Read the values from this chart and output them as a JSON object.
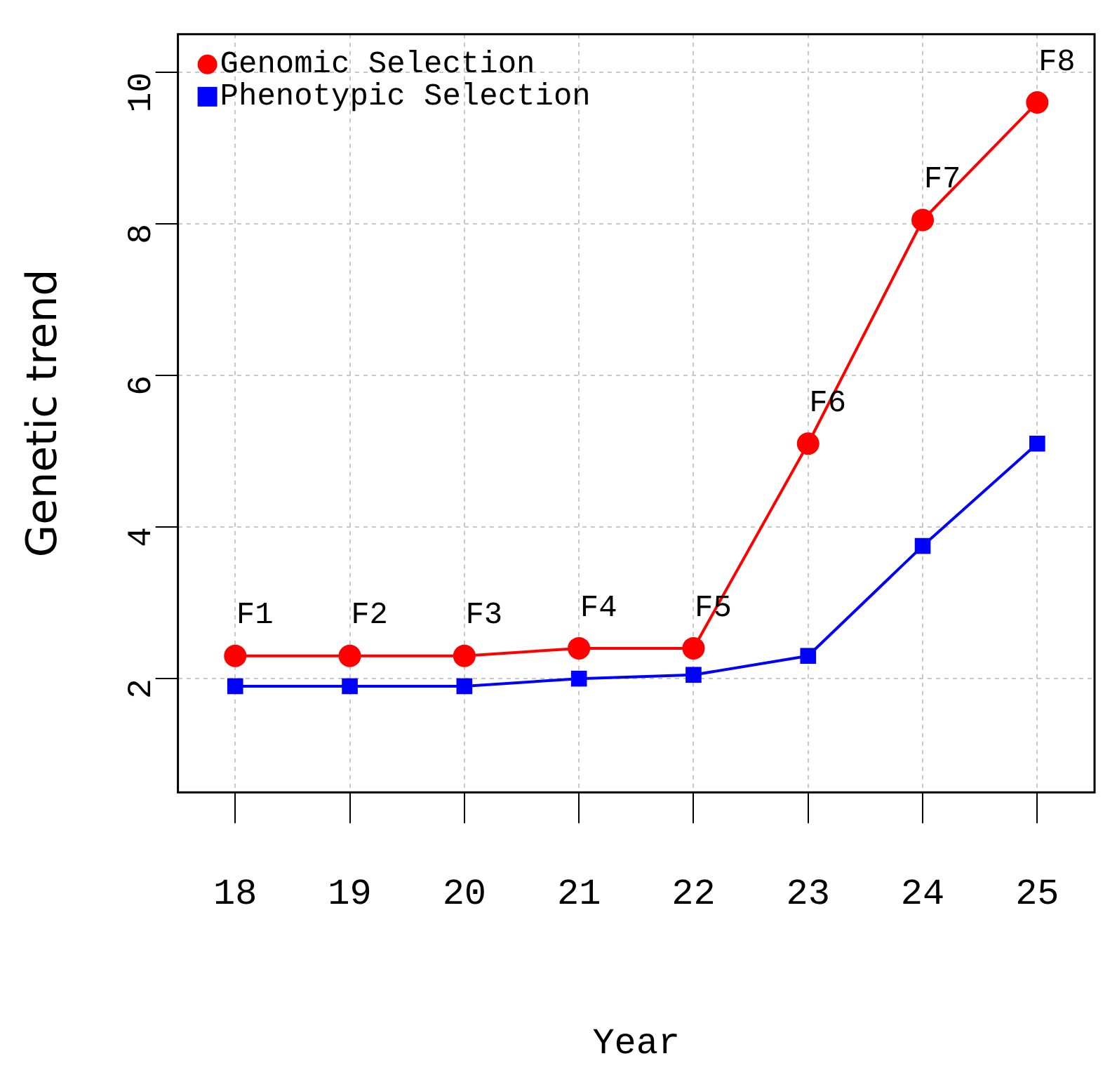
{
  "chart_data": {
    "type": "line",
    "xlabel": "Year",
    "ylabel": "Genetic trend",
    "categories": [
      "18",
      "19",
      "20",
      "21",
      "22",
      "23",
      "24",
      "25"
    ],
    "series": [
      {
        "name": "Genomic Selection",
        "color": "#ff0000",
        "marker": "circle",
        "values": [
          2.3,
          2.3,
          2.3,
          2.4,
          2.4,
          5.1,
          8.05,
          9.6
        ]
      },
      {
        "name": "Phenotypic Selection",
        "color": "#0000ff",
        "marker": "square",
        "values": [
          1.9,
          1.9,
          1.9,
          2.0,
          2.05,
          2.3,
          3.75,
          5.1
        ]
      }
    ],
    "ylim": [
      0.5,
      10.5
    ],
    "yticks": [
      2,
      4,
      6,
      8,
      10
    ],
    "grid": true,
    "legend": "top left",
    "line_style": "solid",
    "annotations": [
      {
        "text": "F1",
        "x": "18",
        "y": 2.3
      },
      {
        "text": "F2",
        "x": "19",
        "y": 2.3
      },
      {
        "text": "F3",
        "x": "20",
        "y": 2.3
      },
      {
        "text": "F4",
        "x": "21",
        "y": 2.4
      },
      {
        "text": "F5",
        "x": "22",
        "y": 2.4
      },
      {
        "text": "F6",
        "x": "23",
        "y": 5.1
      },
      {
        "text": "F7",
        "x": "24",
        "y": 8.05
      },
      {
        "text": "F8",
        "x": "25",
        "y": 9.6
      }
    ]
  }
}
